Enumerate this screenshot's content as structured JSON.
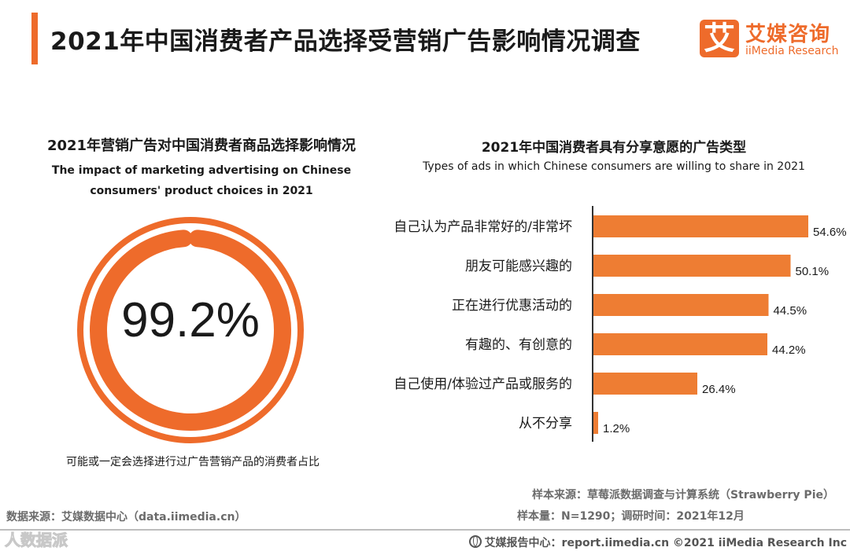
{
  "page": {
    "title": "2021年中国消费者产品选择受营销广告影响情况调查",
    "logo": {
      "cn": "艾媒咨询",
      "en": "iiMedia Research",
      "mark": "艾"
    },
    "accent": "#ee6b2b"
  },
  "left_panel": {
    "title": "2021年营销广告对中国消费者商品选择影响情况",
    "subtitle_line1": "The impact of marketing advertising on Chinese",
    "subtitle_line2": "consumers' product choices in 2021",
    "value_label": "99.2%",
    "note": "可能或一定会选择进行过广告营销产品的消费者占比"
  },
  "right_panel": {
    "title": "2021年中国消费者具有分享意愿的广告类型",
    "subtitle": "Types of ads in which Chinese consumers are willing to share in 2021"
  },
  "chart_data": [
    {
      "type": "pie",
      "title": "2021年营销广告对中国消费者商品选择影响情况",
      "subtitle": "The impact of marketing advertising on Chinese consumers' product choices in 2021",
      "value": 99.2,
      "unit": "%",
      "note": "可能或一定会选择进行过广告营销产品的消费者占比",
      "color": "#ee6b2b"
    },
    {
      "type": "bar",
      "orientation": "horizontal",
      "title": "2021年中国消费者具有分享意愿的广告类型",
      "subtitle": "Types of ads in which Chinese consumers are willing to share in 2021",
      "categories": [
        "自己认为产品非常好的/非常坏",
        "朋友可能感兴趣的",
        "正在进行优惠活动的",
        "有趣的、有创意的",
        "自己使用/体验过产品或服务的",
        "从不分享"
      ],
      "values": [
        54.6,
        50.1,
        44.5,
        44.2,
        26.4,
        1.2
      ],
      "value_labels": [
        "54.6%",
        "50.1%",
        "44.5%",
        "44.2%",
        "26.4%",
        "1.2%"
      ],
      "unit": "%",
      "xlim": [
        0,
        60
      ],
      "grid": false,
      "color": "#ee7d33"
    }
  ],
  "sources": {
    "sample_source": "样本来源：草莓派数据调查与计算系统（Strawberry Pie）",
    "sample_size": "样本量：N=1290；调研时间：2021年12月",
    "data_source": "数据来源：艾媒数据中心（data.iimedia.cn）",
    "report": "艾媒报告中心：report.iimedia.cn ©2021  iiMedia Research  Inc",
    "watermark": "人数据派"
  }
}
